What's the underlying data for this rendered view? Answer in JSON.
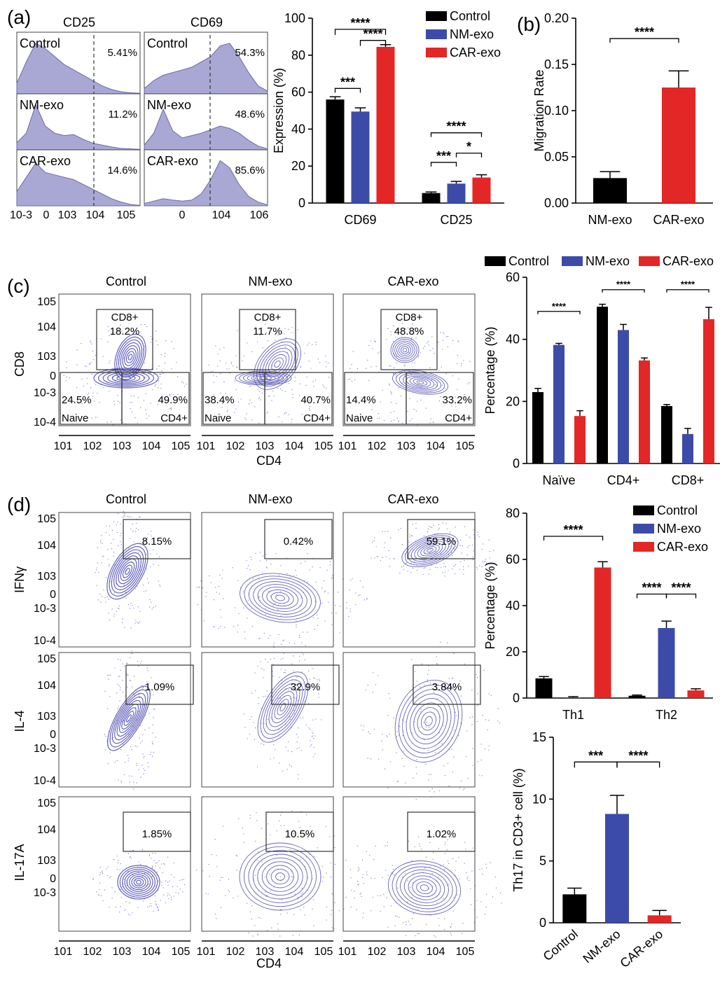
{
  "colors": {
    "control": "#000000",
    "nm": "#3d4ba8",
    "car": "#e32626",
    "flow": "#a9a8d4",
    "contour": "#4b48b0"
  },
  "labels": {
    "a": "(a)",
    "b": "(b)",
    "c": "(c)",
    "d": "(d)"
  },
  "panel_a_flow": {
    "columns": [
      "CD25",
      "CD69"
    ],
    "rows": [
      "Control",
      "NM-exo",
      "CAR-exo"
    ],
    "cd25_pcts": [
      "5.41%",
      "11.2%",
      "14.6%"
    ],
    "cd69_pcts": [
      "54.3%",
      "48.6%",
      "85.6%"
    ],
    "cd25_ticks": [
      "10-3",
      "0",
      "103",
      "104",
      "105"
    ],
    "cd69_ticks": [
      "0",
      "104",
      "106"
    ]
  },
  "flow_c": {
    "columns": [
      "Control",
      "NM-exo",
      "CAR-exo"
    ],
    "y_axis_label": "CD8",
    "x_axis_label": "CD4",
    "gate_cd8": "CD8+",
    "gate_naive": "Naive",
    "gate_cd4": "CD4+",
    "cd8_pcts": [
      "18.2%",
      "11.7%",
      "48.8%"
    ],
    "naive_pcts": [
      "24.5%",
      "38.4%",
      "14.4%"
    ],
    "cd4_pcts": [
      "49.9%",
      "40.7%",
      "33.2%"
    ],
    "y_ticks": [
      "105",
      "104",
      "103",
      "0",
      "10-3",
      "10-4"
    ],
    "x_ticks": [
      "101",
      "102",
      "103",
      "104",
      "105"
    ]
  },
  "flow_d": {
    "columns": [
      "Control",
      "NM-exo",
      "CAR-exo"
    ],
    "rows": [
      "IFNγ",
      "IL-4",
      "IL-17A"
    ],
    "x_axis_label": "CD4",
    "pcts": [
      [
        "8.15%",
        "0.42%",
        "59.1%"
      ],
      [
        "1.09%",
        "32.9%",
        "3.84%"
      ],
      [
        "1.85%",
        "10.5%",
        "1.02%"
      ]
    ],
    "y_ticks": [
      "105",
      "104",
      "103",
      "0",
      "10-3",
      "10-4"
    ],
    "x_ticks": [
      "101",
      "102",
      "103",
      "104",
      "105"
    ]
  },
  "chart_data": [
    {
      "type": "bar",
      "panel": "a",
      "categories": [
        "CD69",
        "CD25"
      ],
      "series": [
        {
          "name": "Control",
          "values": [
            56,
            5.4
          ],
          "errors": [
            1.5,
            0.6
          ]
        },
        {
          "name": "NM-exo",
          "values": [
            49.5,
            10.5
          ],
          "errors": [
            2,
            1.2
          ]
        },
        {
          "name": "CAR-exo",
          "values": [
            84.5,
            13.8
          ],
          "errors": [
            1.2,
            1.5
          ]
        }
      ],
      "ylabel": "Expression (%)",
      "ylim": [
        0,
        100
      ],
      "yticks": [
        "0",
        "20",
        "40",
        "60",
        "80",
        "100"
      ],
      "legend": "top-right",
      "annotations": [
        "****",
        "****",
        "***",
        "****",
        "***",
        "*"
      ]
    },
    {
      "type": "bar",
      "panel": "b",
      "categories": [
        "NM-exo",
        "CAR-exo"
      ],
      "values": [
        0.027,
        0.125
      ],
      "errors": [
        0.007,
        0.018
      ],
      "ylabel": "Migration Rate",
      "ylim": [
        0,
        0.2
      ],
      "yticks": [
        "0.00",
        "0.05",
        "0.10",
        "0.15",
        "0.20"
      ],
      "annotations": [
        "****"
      ]
    },
    {
      "type": "bar",
      "panel": "c",
      "categories": [
        "Naïve",
        "CD4+",
        "CD8+"
      ],
      "series": [
        {
          "name": "Control",
          "values": [
            23,
            50.5,
            18.5
          ],
          "errors": [
            1.2,
            0.8,
            0.5
          ]
        },
        {
          "name": "NM-exo",
          "values": [
            38.2,
            43,
            9.5
          ],
          "errors": [
            0.5,
            1.8,
            1.8
          ]
        },
        {
          "name": "CAR-exo",
          "values": [
            15.3,
            33.2,
            46.5
          ],
          "errors": [
            1.7,
            0.8,
            3.8
          ]
        }
      ],
      "ylabel": "Percentage (%)",
      "ylim": [
        0,
        60
      ],
      "yticks": [
        "0",
        "20",
        "40",
        "60"
      ],
      "legend": "top",
      "annotations": [
        "****",
        "****",
        "****"
      ]
    },
    {
      "type": "bar",
      "panel": "d",
      "categories": [
        "Th1",
        "Th2"
      ],
      "series": [
        {
          "name": "Control",
          "values": [
            8.5,
            1
          ],
          "errors": [
            0.8,
            0.3
          ]
        },
        {
          "name": "NM-exo",
          "values": [
            0.3,
            30.3
          ],
          "errors": [
            0.3,
            3
          ]
        },
        {
          "name": "CAR-exo",
          "values": [
            56.5,
            3.3
          ],
          "errors": [
            2.5,
            0.7
          ]
        }
      ],
      "ylabel": "Percentage (%)",
      "ylim": [
        0,
        80
      ],
      "yticks": [
        "0",
        "20",
        "40",
        "60",
        "80"
      ],
      "legend": "top-right",
      "annotations": [
        "****",
        "****",
        "****"
      ]
    },
    {
      "type": "bar",
      "panel": "d",
      "categories": [
        "Control",
        "NM-exo",
        "CAR-exo"
      ],
      "values": [
        2.3,
        8.8,
        0.6
      ],
      "errors": [
        0.5,
        1.5,
        0.4
      ],
      "ylabel": "Th17 in CD3+ cell (%)",
      "ylim": [
        0,
        15
      ],
      "yticks": [
        "0",
        "5",
        "10",
        "15"
      ],
      "annotations": [
        "***",
        "****"
      ]
    }
  ]
}
